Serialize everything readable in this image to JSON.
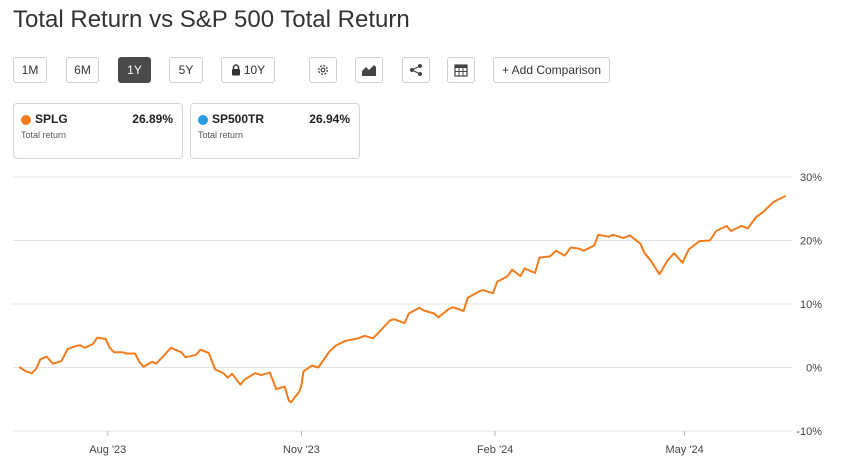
{
  "title": "Total Return vs S&P 500 Total Return",
  "toolbar": {
    "ranges": [
      "1M",
      "6M",
      "1Y",
      "5Y",
      "10Y"
    ],
    "active_range": "1Y",
    "locked_range_icon": "lock-icon",
    "icons": [
      "gear-icon",
      "area-chart-icon",
      "share-icon",
      "table-icon"
    ],
    "add_comparison": "+ Add Comparison"
  },
  "legend": [
    {
      "ticker": "SPLG",
      "value": "26.89%",
      "label": "Total return",
      "color": "#f07c1d"
    },
    {
      "ticker": "SP500TR",
      "value": "26.94%",
      "label": "Total return",
      "color": "#2b9be8"
    }
  ],
  "chart_data": {
    "type": "line",
    "title": "",
    "xlabel": "",
    "ylabel": "",
    "ylim": [
      -10,
      30
    ],
    "y_ticks": [
      30,
      20,
      10,
      0,
      -10
    ],
    "y_tick_labels": [
      "30%",
      "20%",
      "10%",
      "0%",
      "-10%"
    ],
    "x_tick_labels": [
      "Aug '23",
      "Nov '23",
      "Feb '24",
      "May '24"
    ],
    "x_tick_dates": [
      "2023-08-01",
      "2023-11-01",
      "2024-02-01",
      "2024-05-01"
    ],
    "x_range": [
      "2023-06-17",
      "2024-06-21"
    ],
    "grid": "horizontal",
    "series": [
      {
        "name": "SPLG",
        "color": "#f07c1d",
        "points": [
          [
            "2023-06-20",
            0.1
          ],
          [
            "2023-06-23",
            -0.6
          ],
          [
            "2023-06-26",
            -0.9
          ],
          [
            "2023-06-28",
            -0.2
          ],
          [
            "2023-06-30",
            1.3
          ],
          [
            "2023-07-03",
            1.7
          ],
          [
            "2023-07-06",
            0.6
          ],
          [
            "2023-07-10",
            1.0
          ],
          [
            "2023-07-13",
            2.9
          ],
          [
            "2023-07-17",
            3.4
          ],
          [
            "2023-07-19",
            3.5
          ],
          [
            "2023-07-21",
            3.1
          ],
          [
            "2023-07-25",
            3.7
          ],
          [
            "2023-07-27",
            4.7
          ],
          [
            "2023-07-31",
            4.5
          ],
          [
            "2023-08-02",
            3.1
          ],
          [
            "2023-08-04",
            2.4
          ],
          [
            "2023-08-08",
            2.4
          ],
          [
            "2023-08-10",
            2.2
          ],
          [
            "2023-08-14",
            2.2
          ],
          [
            "2023-08-16",
            0.9
          ],
          [
            "2023-08-18",
            0.1
          ],
          [
            "2023-08-22",
            0.9
          ],
          [
            "2023-08-24",
            0.6
          ],
          [
            "2023-08-28",
            2.0
          ],
          [
            "2023-08-31",
            3.1
          ],
          [
            "2023-09-05",
            2.4
          ],
          [
            "2023-09-07",
            1.6
          ],
          [
            "2023-09-12",
            2.0
          ],
          [
            "2023-09-14",
            2.8
          ],
          [
            "2023-09-18",
            2.3
          ],
          [
            "2023-09-21",
            -0.3
          ],
          [
            "2023-09-25",
            -0.9
          ],
          [
            "2023-09-27",
            -1.6
          ],
          [
            "2023-09-29",
            -1.0
          ],
          [
            "2023-10-03",
            -2.7
          ],
          [
            "2023-10-05",
            -1.9
          ],
          [
            "2023-10-10",
            -0.9
          ],
          [
            "2023-10-13",
            -1.2
          ],
          [
            "2023-10-17",
            -0.8
          ],
          [
            "2023-10-20",
            -3.4
          ],
          [
            "2023-10-24",
            -3.0
          ],
          [
            "2023-10-26",
            -5.2
          ],
          [
            "2023-10-27",
            -5.5
          ],
          [
            "2023-10-31",
            -3.8
          ],
          [
            "2023-11-01",
            -2.8
          ],
          [
            "2023-11-02",
            -0.6
          ],
          [
            "2023-11-06",
            0.3
          ],
          [
            "2023-11-09",
            0.0
          ],
          [
            "2023-11-14",
            2.4
          ],
          [
            "2023-11-17",
            3.4
          ],
          [
            "2023-11-22",
            4.2
          ],
          [
            "2023-11-28",
            4.6
          ],
          [
            "2023-12-01",
            5.0
          ],
          [
            "2023-12-05",
            4.6
          ],
          [
            "2023-12-08",
            5.6
          ],
          [
            "2023-12-13",
            7.4
          ],
          [
            "2023-12-15",
            7.6
          ],
          [
            "2023-12-20",
            7.0
          ],
          [
            "2023-12-22",
            8.5
          ],
          [
            "2023-12-27",
            9.4
          ],
          [
            "2023-12-29",
            9.0
          ],
          [
            "2024-01-03",
            8.5
          ],
          [
            "2024-01-05",
            7.9
          ],
          [
            "2024-01-10",
            9.2
          ],
          [
            "2024-01-12",
            9.5
          ],
          [
            "2024-01-17",
            8.9
          ],
          [
            "2024-01-19",
            11.0
          ],
          [
            "2024-01-24",
            11.9
          ],
          [
            "2024-01-26",
            12.2
          ],
          [
            "2024-01-31",
            11.7
          ],
          [
            "2024-02-02",
            13.5
          ],
          [
            "2024-02-07",
            14.4
          ],
          [
            "2024-02-09",
            15.4
          ],
          [
            "2024-02-13",
            14.4
          ],
          [
            "2024-02-15",
            15.6
          ],
          [
            "2024-02-20",
            14.9
          ],
          [
            "2024-02-22",
            17.3
          ],
          [
            "2024-02-27",
            17.5
          ],
          [
            "2024-03-01",
            18.4
          ],
          [
            "2024-03-05",
            17.6
          ],
          [
            "2024-03-08",
            18.9
          ],
          [
            "2024-03-12",
            18.7
          ],
          [
            "2024-03-14",
            18.4
          ],
          [
            "2024-03-19",
            19.2
          ],
          [
            "2024-03-21",
            20.9
          ],
          [
            "2024-03-26",
            20.6
          ],
          [
            "2024-03-28",
            20.9
          ],
          [
            "2024-04-02",
            20.4
          ],
          [
            "2024-04-05",
            20.8
          ],
          [
            "2024-04-10",
            19.5
          ],
          [
            "2024-04-12",
            18.0
          ],
          [
            "2024-04-15",
            16.8
          ],
          [
            "2024-04-19",
            14.7
          ],
          [
            "2024-04-23",
            16.9
          ],
          [
            "2024-04-26",
            18.0
          ],
          [
            "2024-04-30",
            16.5
          ],
          [
            "2024-05-03",
            18.6
          ],
          [
            "2024-05-08",
            19.9
          ],
          [
            "2024-05-13",
            20.0
          ],
          [
            "2024-05-16",
            21.5
          ],
          [
            "2024-05-21",
            22.3
          ],
          [
            "2024-05-23",
            21.5
          ],
          [
            "2024-05-28",
            22.3
          ],
          [
            "2024-05-31",
            21.9
          ],
          [
            "2024-06-04",
            23.7
          ],
          [
            "2024-06-07",
            24.4
          ],
          [
            "2024-06-12",
            26.0
          ],
          [
            "2024-06-14",
            26.4
          ],
          [
            "2024-06-18",
            27.0
          ]
        ]
      }
    ]
  }
}
